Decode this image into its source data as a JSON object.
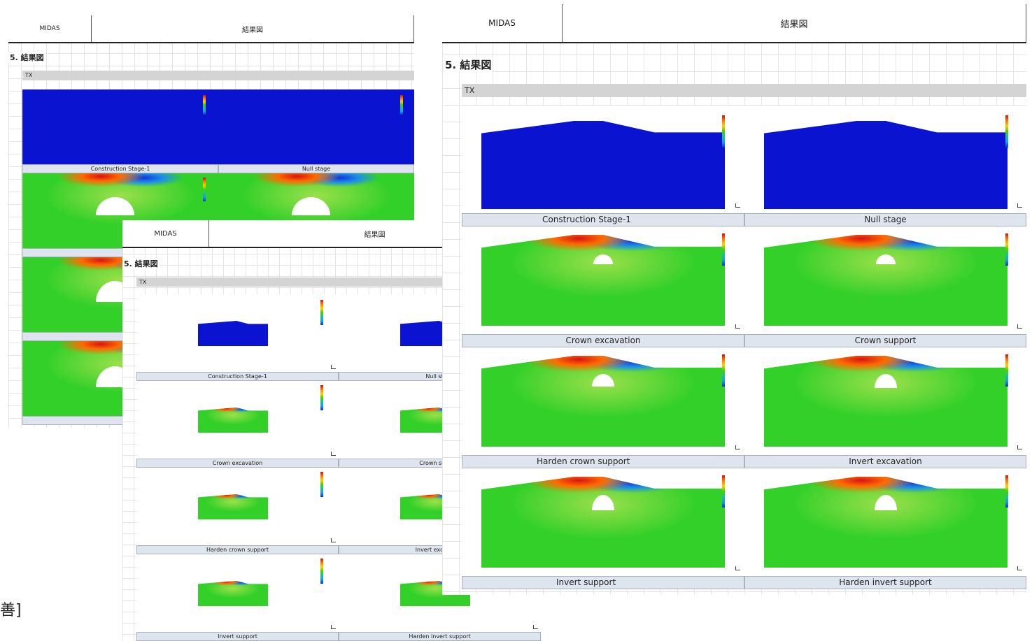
{
  "header": {
    "left": "MIDAS",
    "right": "結果図"
  },
  "section_title": "5. 結果図",
  "component": "TX",
  "stages": [
    "Construction Stage-1",
    "Null stage",
    "Crown excavation",
    "Crown support",
    "Harden crown support",
    "Invert excavation",
    "Invert support",
    "Harden invert support"
  ],
  "back_captions": [
    "Construction Stage-1",
    "Null stage",
    "Crown ex",
    "Harden crov",
    "Invert su"
  ],
  "partial_text": "善]",
  "colors": {
    "soil_initial": "#0a14d0",
    "soil_excavated": "#33d02a",
    "caption_bg": "#dfe5ee",
    "tx_bar": "#d4d4d4"
  }
}
